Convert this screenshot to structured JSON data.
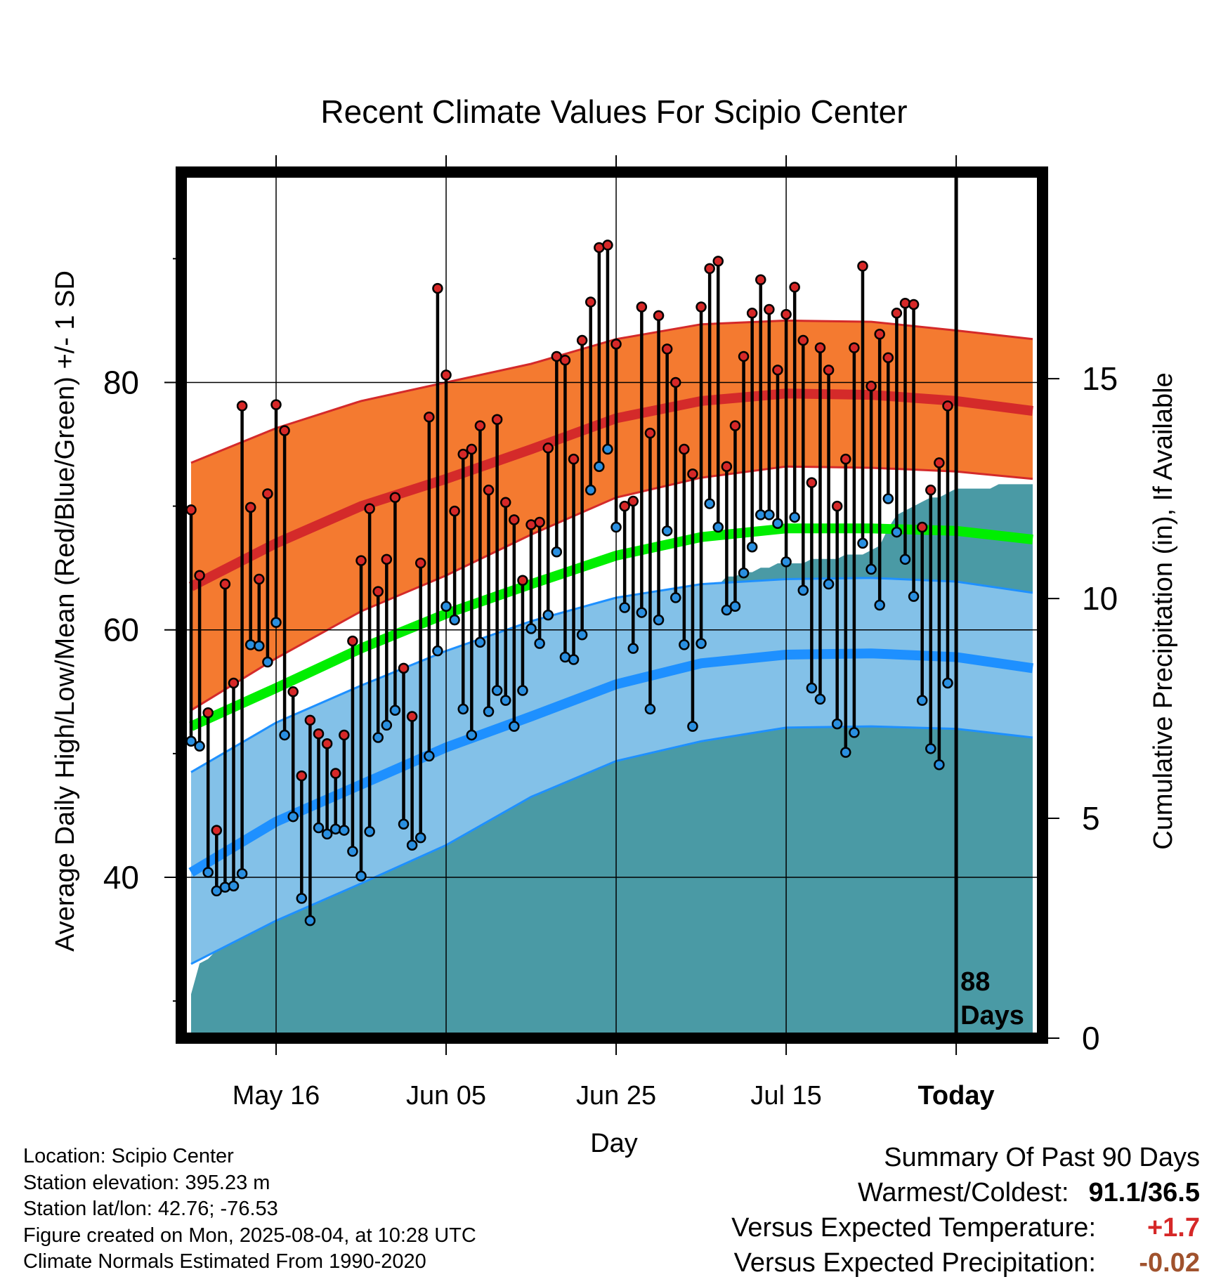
{
  "chart_data": {
    "type": "line",
    "title": "Recent Climate Values For Scipio Center",
    "xlabel": "Day",
    "ylabel": "Average Daily High/Low/Mean (Red/Blue/Green) +/- 1 SD",
    "y2label": "Cumulative Precipitation (in), If Available",
    "ylim": [
      27,
      97
    ],
    "y2lim": [
      0,
      19.7
    ],
    "yticks": [
      40,
      60,
      80
    ],
    "y2ticks": [
      0,
      5,
      10,
      15
    ],
    "xlim": [
      0,
      99
    ],
    "xticks": [
      {
        "x": 10,
        "label": "May 16"
      },
      {
        "x": 30,
        "label": "Jun 05"
      },
      {
        "x": 50,
        "label": "Jun 25"
      },
      {
        "x": 70,
        "label": "Jul 15"
      },
      {
        "x": 90,
        "label": "Today"
      }
    ],
    "today_x": 90,
    "today_label_line1": "88",
    "today_label_line2": "Days",
    "grid": true,
    "colors": {
      "high_band": "#f47a30",
      "high_band_edge": "#d42a2a",
      "high_normal": "#d42a2a",
      "low_band": "#83c1e8",
      "low_band_edge": "#1e90ff",
      "low_normal": "#1e90ff",
      "mean_normal": "#00ee00",
      "precip": "#4a9aa5",
      "high_dot": "#d62828",
      "low_dot": "#2a8fe0"
    },
    "normals": {
      "x": [
        0,
        10,
        20,
        30,
        40,
        50,
        60,
        70,
        80,
        90,
        99
      ],
      "high_mean": [
        63.5,
        67,
        70,
        72.2,
        74.6,
        77.1,
        78.5,
        79.1,
        79.0,
        78.5,
        77.7
      ],
      "high_upper": [
        73.5,
        76.3,
        78.5,
        80.0,
        81.5,
        83.5,
        84.7,
        85.0,
        84.9,
        84.2,
        83.5
      ],
      "high_lower": [
        53.5,
        57.7,
        61.5,
        64.4,
        67.7,
        70.7,
        72.3,
        73.2,
        73.1,
        72.8,
        72.2
      ],
      "mean": [
        52.2,
        55.3,
        58.5,
        61.3,
        63.7,
        66.0,
        67.5,
        68.2,
        68.2,
        68.0,
        67.3
      ],
      "low_mean": [
        40.4,
        44.5,
        47.5,
        50.5,
        53.0,
        55.6,
        57.3,
        58.0,
        58.1,
        57.8,
        56.9
      ],
      "low_upper": [
        48.5,
        52.5,
        55.5,
        58.3,
        60.7,
        62.6,
        63.7,
        64.1,
        64.2,
        63.9,
        63.0
      ],
      "low_lower": [
        33.0,
        36.5,
        39.5,
        42.6,
        46.5,
        49.4,
        51.0,
        52.1,
        52.2,
        52.0,
        51.3
      ]
    },
    "series": [
      {
        "name": "High",
        "values": [
          69.7,
          64.4,
          53.3,
          43.8,
          63.7,
          55.7,
          78.1,
          69.9,
          64.1,
          71.0,
          78.2,
          76.1,
          55.0,
          48.2,
          52.7,
          51.6,
          50.8,
          48.4,
          51.5,
          59.1,
          65.6,
          69.8,
          63.1,
          65.7,
          70.7,
          56.9,
          53.0,
          65.4,
          77.2,
          87.6,
          80.6,
          69.6,
          74.2,
          74.6,
          76.5,
          71.3,
          77.0,
          70.3,
          68.9,
          64.0,
          68.5,
          68.7,
          74.7,
          82.1,
          81.8,
          73.8,
          83.4,
          86.5,
          90.9,
          91.1,
          83.1,
          70.0,
          70.4,
          86.1,
          75.9,
          85.4,
          82.7,
          80.0,
          74.6,
          72.6,
          86.1,
          89.2,
          89.8,
          73.2,
          76.5,
          82.1,
          85.6,
          88.3,
          85.9,
          81.0,
          85.5,
          87.7,
          83.4,
          71.9,
          82.8,
          81.0,
          70.0,
          73.8,
          82.8,
          89.4,
          79.7,
          83.9,
          82.0,
          85.6,
          86.4,
          86.3,
          68.3,
          71.3,
          73.5,
          78.1
        ],
        "color": "#d62828"
      },
      {
        "name": "Low",
        "values": [
          51.0,
          50.6,
          40.4,
          38.9,
          39.2,
          39.3,
          40.3,
          58.8,
          58.7,
          57.4,
          60.6,
          51.5,
          44.9,
          38.3,
          36.5,
          44.0,
          43.5,
          43.9,
          43.8,
          42.1,
          40.1,
          43.7,
          51.3,
          52.3,
          53.5,
          44.3,
          42.6,
          43.2,
          49.8,
          58.3,
          61.9,
          60.8,
          53.6,
          51.5,
          59.0,
          53.4,
          55.1,
          54.3,
          52.2,
          55.1,
          60.1,
          58.9,
          61.2,
          66.3,
          57.8,
          57.6,
          59.6,
          71.3,
          73.2,
          74.6,
          68.3,
          61.8,
          58.5,
          61.4,
          53.6,
          60.8,
          68.0,
          62.6,
          58.8,
          52.2,
          58.9,
          70.2,
          68.3,
          61.6,
          61.9,
          64.6,
          66.7,
          69.3,
          69.3,
          68.6,
          65.5,
          69.1,
          63.2,
          55.3,
          54.4,
          63.7,
          52.4,
          50.1,
          51.7,
          67.0,
          64.9,
          62.0,
          70.6,
          67.9,
          65.7,
          62.7,
          54.3,
          50.4,
          49.1,
          55.7
        ],
        "color": "#2a8fe0"
      }
    ],
    "precip": {
      "x": [
        0,
        1,
        2,
        3,
        4,
        5,
        6,
        7,
        8,
        9,
        10,
        11,
        12,
        13,
        14,
        15,
        16,
        17,
        18,
        19,
        20,
        21,
        22,
        23,
        24,
        25,
        26,
        27,
        28,
        29,
        30,
        31,
        32,
        33,
        34,
        35,
        36,
        37,
        38,
        39,
        40,
        41,
        42,
        43,
        44,
        45,
        46,
        47,
        48,
        49,
        50,
        51,
        52,
        53,
        54,
        55,
        56,
        57,
        58,
        59,
        60,
        61,
        62,
        63,
        64,
        65,
        66,
        67,
        68,
        69,
        70,
        71,
        72,
        73,
        74,
        75,
        76,
        77,
        78,
        79,
        80,
        81,
        82,
        83,
        84,
        85,
        86,
        87,
        88,
        89,
        90,
        91,
        92,
        93,
        94,
        95,
        96,
        97,
        98,
        99
      ],
      "values": [
        1.0,
        1.7,
        1.8,
        2.0,
        2.3,
        2.4,
        2.5,
        2.5,
        2.9,
        3.0,
        3.1,
        3.5,
        3.6,
        3.6,
        3.6,
        3.9,
        4.1,
        4.6,
        5.0,
        5.1,
        5.2,
        5.5,
        5.6,
        5.8,
        6.0,
        6.1,
        6.2,
        6.3,
        6.3,
        6.3,
        6.4,
        7.3,
        7.7,
        7.8,
        8.0,
        8.6,
        9.0,
        9.1,
        9.1,
        9.1,
        9.1,
        9.2,
        9.3,
        9.4,
        9.5,
        9.6,
        9.7,
        9.7,
        9.7,
        9.7,
        9.7,
        9.8,
        9.8,
        9.8,
        9.9,
        10.0,
        10.0,
        10.1,
        10.2,
        10.3,
        10.3,
        10.3,
        10.3,
        10.5,
        10.5,
        10.6,
        10.6,
        10.7,
        10.7,
        10.8,
        10.8,
        10.8,
        10.8,
        10.9,
        10.9,
        10.9,
        10.9,
        11.0,
        11.0,
        11.0,
        11.1,
        11.2,
        11.6,
        11.9,
        12.0,
        12.1,
        12.2,
        12.3,
        12.3,
        12.4,
        12.5,
        12.5,
        12.5,
        12.5,
        12.5,
        12.6,
        12.6,
        12.6,
        12.6,
        12.6
      ],
      "color": "#4a9aa5"
    }
  },
  "info": {
    "location": "Location: Scipio Center",
    "elevation": "Station elevation: 395.23 m",
    "latlon": "Station lat/lon: 42.76; -76.53",
    "created": "Figure created on Mon, 2025-08-04, at 10:28 UTC",
    "normals": "Climate Normals Estimated From 1990-2020"
  },
  "summary": {
    "heading": "Summary Of Past 90 Days",
    "warm_cold_label": "Warmest/Coldest:",
    "warm_cold_value": "91.1/36.5",
    "temp_label": "Versus Expected Temperature:",
    "temp_value": "+1.7",
    "temp_color": "#d62828",
    "precip_label": "Versus Expected Precipitation:",
    "precip_value": "-0.02",
    "precip_color": "#a0522d"
  }
}
